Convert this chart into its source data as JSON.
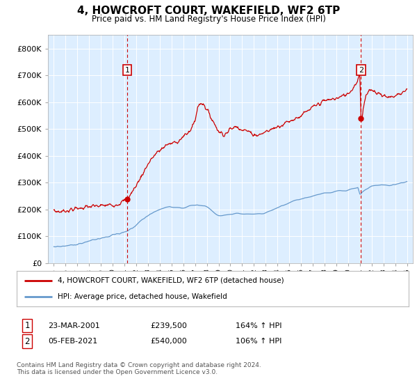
{
  "title": "4, HOWCROFT COURT, WAKEFIELD, WF2 6TP",
  "subtitle": "Price paid vs. HM Land Registry's House Price Index (HPI)",
  "title_fontsize": 11,
  "subtitle_fontsize": 9,
  "ylabel_ticks": [
    "£0",
    "£100K",
    "£200K",
    "£300K",
    "£400K",
    "£500K",
    "£600K",
    "£700K",
    "£800K"
  ],
  "ytick_values": [
    0,
    100000,
    200000,
    300000,
    400000,
    500000,
    600000,
    700000,
    800000
  ],
  "ylim": [
    0,
    850000
  ],
  "xlim_start": 1994.5,
  "xlim_end": 2025.5,
  "background_color": "#ffffff",
  "plot_bg_color": "#ddeeff",
  "grid_color": "#ffffff",
  "red_line_color": "#cc0000",
  "blue_line_color": "#6699cc",
  "dashed_line_color": "#cc0000",
  "annotation1": {
    "x": 2001.23,
    "y_dot": 239500,
    "label": "1"
  },
  "annotation2": {
    "x": 2021.09,
    "y_dot": 540000,
    "label": "2"
  },
  "legend_entry1": "4, HOWCROFT COURT, WAKEFIELD, WF2 6TP (detached house)",
  "legend_entry2": "HPI: Average price, detached house, Wakefield",
  "table_row1": [
    "1",
    "23-MAR-2001",
    "£239,500",
    "164% ↑ HPI"
  ],
  "table_row2": [
    "2",
    "05-FEB-2021",
    "£540,000",
    "106% ↑ HPI"
  ],
  "footnote": "Contains HM Land Registry data © Crown copyright and database right 2024.\nThis data is licensed under the Open Government Licence v3.0.",
  "sale1_year": 2001.23,
  "sale1_price": 239500,
  "sale2_year": 2021.09,
  "sale2_price": 540000,
  "hpi_years": [
    1995.0,
    1995.08,
    1995.17,
    1995.25,
    1995.33,
    1995.42,
    1995.5,
    1995.58,
    1995.67,
    1995.75,
    1995.83,
    1995.92,
    1996.0,
    1996.08,
    1996.17,
    1996.25,
    1996.33,
    1996.42,
    1996.5,
    1996.58,
    1996.67,
    1996.75,
    1996.83,
    1996.92,
    1997.0,
    1997.08,
    1997.17,
    1997.25,
    1997.33,
    1997.42,
    1997.5,
    1997.58,
    1997.67,
    1997.75,
    1997.83,
    1997.92,
    1998.0,
    1998.08,
    1998.17,
    1998.25,
    1998.33,
    1998.42,
    1998.5,
    1998.58,
    1998.67,
    1998.75,
    1998.83,
    1998.92,
    1999.0,
    1999.08,
    1999.17,
    1999.25,
    1999.33,
    1999.42,
    1999.5,
    1999.58,
    1999.67,
    1999.75,
    1999.83,
    1999.92,
    2000.0,
    2000.08,
    2000.17,
    2000.25,
    2000.33,
    2000.42,
    2000.5,
    2000.58,
    2000.67,
    2000.75,
    2000.83,
    2000.92,
    2001.0,
    2001.08,
    2001.23,
    2001.33,
    2001.42,
    2001.5,
    2001.58,
    2001.67,
    2001.75,
    2001.83,
    2001.92,
    2002.0,
    2002.17,
    2002.33,
    2002.5,
    2002.67,
    2002.83,
    2003.0,
    2003.17,
    2003.33,
    2003.5,
    2003.67,
    2003.83,
    2004.0,
    2004.17,
    2004.33,
    2004.5,
    2004.67,
    2004.83,
    2005.0,
    2005.17,
    2005.33,
    2005.5,
    2005.67,
    2005.83,
    2006.0,
    2006.17,
    2006.33,
    2006.5,
    2006.67,
    2006.83,
    2007.0,
    2007.17,
    2007.33,
    2007.5,
    2007.67,
    2007.83,
    2008.0,
    2008.17,
    2008.33,
    2008.5,
    2008.67,
    2008.83,
    2009.0,
    2009.17,
    2009.33,
    2009.5,
    2009.67,
    2009.83,
    2010.0,
    2010.17,
    2010.33,
    2010.5,
    2010.67,
    2010.83,
    2011.0,
    2011.17,
    2011.33,
    2011.5,
    2011.67,
    2011.83,
    2012.0,
    2012.17,
    2012.33,
    2012.5,
    2012.67,
    2012.83,
    2013.0,
    2013.17,
    2013.33,
    2013.5,
    2013.67,
    2013.83,
    2014.0,
    2014.17,
    2014.33,
    2014.5,
    2014.67,
    2014.83,
    2015.0,
    2015.17,
    2015.33,
    2015.5,
    2015.67,
    2015.83,
    2016.0,
    2016.17,
    2016.33,
    2016.5,
    2016.67,
    2016.83,
    2017.0,
    2017.17,
    2017.33,
    2017.5,
    2017.67,
    2017.83,
    2018.0,
    2018.17,
    2018.33,
    2018.5,
    2018.67,
    2018.83,
    2019.0,
    2019.17,
    2019.33,
    2019.5,
    2019.67,
    2019.83,
    2020.0,
    2020.17,
    2020.33,
    2020.5,
    2020.67,
    2020.83,
    2021.0,
    2021.09,
    2021.17,
    2021.33,
    2021.5,
    2021.67,
    2021.83,
    2022.0,
    2022.17,
    2022.33,
    2022.5,
    2022.67,
    2022.83,
    2023.0,
    2023.17,
    2023.33,
    2023.5,
    2023.67,
    2023.83,
    2024.0,
    2024.17,
    2024.33,
    2024.5,
    2024.67,
    2024.83,
    2025.0
  ],
  "hpi_values": [
    62000,
    62500,
    62200,
    62800,
    63000,
    62500,
    63200,
    63000,
    63500,
    64000,
    63800,
    64200,
    64500,
    65000,
    65500,
    66000,
    66500,
    67000,
    67500,
    68000,
    68500,
    69000,
    69500,
    70000,
    71000,
    72000,
    73000,
    74000,
    75000,
    76000,
    77000,
    78000,
    79000,
    80000,
    81000,
    82000,
    83000,
    84000,
    85000,
    86000,
    87000,
    87500,
    88000,
    88500,
    89000,
    89500,
    90000,
    90500,
    92000,
    93000,
    94000,
    95000,
    96000,
    97000,
    98000,
    99000,
    100000,
    101000,
    102000,
    103000,
    105000,
    106000,
    107000,
    108000,
    109000,
    110000,
    111000,
    112000,
    113000,
    114000,
    115000,
    116000,
    118000,
    119000,
    121000,
    123000,
    125000,
    127000,
    129000,
    131000,
    133000,
    135000,
    137000,
    141000,
    148000,
    156000,
    163000,
    169000,
    174000,
    178000,
    183000,
    187000,
    191000,
    194000,
    197000,
    200000,
    203000,
    206000,
    208000,
    209000,
    210000,
    210000,
    209000,
    208000,
    207000,
    206000,
    205000,
    206000,
    208000,
    210000,
    212000,
    214000,
    215000,
    216000,
    217000,
    217000,
    216000,
    215000,
    214000,
    210000,
    204000,
    197000,
    191000,
    186000,
    182000,
    179000,
    178000,
    178000,
    179000,
    180000,
    181000,
    182000,
    183000,
    184000,
    185000,
    185000,
    185000,
    185000,
    184000,
    183000,
    182000,
    181000,
    181000,
    181000,
    182000,
    183000,
    184000,
    185000,
    186000,
    188000,
    191000,
    194000,
    197000,
    200000,
    203000,
    206000,
    209000,
    212000,
    215000,
    218000,
    221000,
    224000,
    227000,
    230000,
    233000,
    235000,
    237000,
    239000,
    241000,
    243000,
    245000,
    247000,
    249000,
    251000,
    253000,
    255000,
    257000,
    258000,
    259000,
    260000,
    261000,
    262000,
    263000,
    264000,
    265000,
    266000,
    267000,
    268000,
    269000,
    270000,
    271000,
    272000,
    274000,
    276000,
    278000,
    280000,
    282000,
    258000,
    259000,
    264000,
    270000,
    274000,
    278000,
    282000,
    286000,
    288000,
    290000,
    291000,
    292000,
    293000,
    293000,
    292000,
    291000,
    290000,
    291000,
    292000,
    293000,
    295000,
    297000,
    299000,
    301000,
    303000,
    305000
  ]
}
